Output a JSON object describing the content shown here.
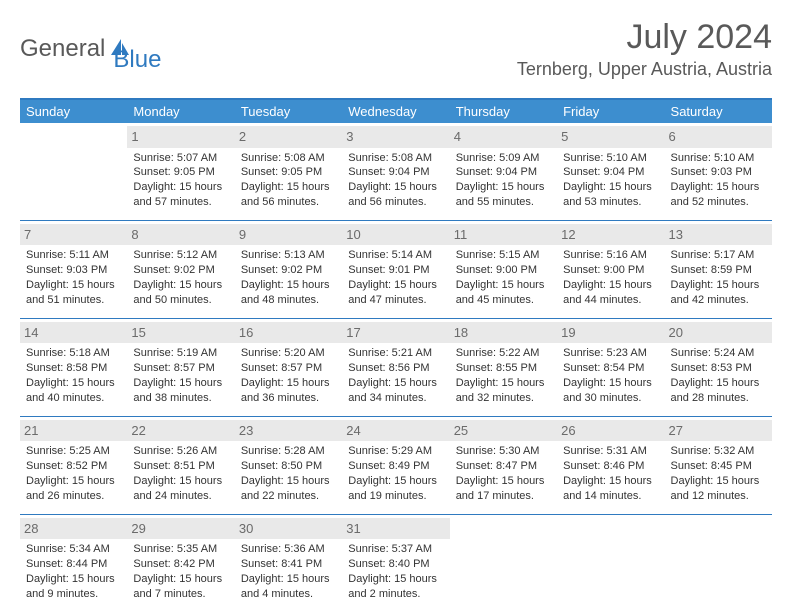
{
  "brand": {
    "part1": "General",
    "part2": "Blue"
  },
  "title": "July 2024",
  "location": "Ternberg, Upper Austria, Austria",
  "colors": {
    "accent": "#3d8ecf",
    "rule": "#2f7ac0",
    "daynum_bg": "#e9e9e9",
    "text": "#333333",
    "muted": "#595959"
  },
  "weekdays": [
    "Sunday",
    "Monday",
    "Tuesday",
    "Wednesday",
    "Thursday",
    "Friday",
    "Saturday"
  ],
  "weeks": [
    [
      null,
      {
        "n": "1",
        "sr": "Sunrise: 5:07 AM",
        "ss": "Sunset: 9:05 PM",
        "d1": "Daylight: 15 hours",
        "d2": "and 57 minutes."
      },
      {
        "n": "2",
        "sr": "Sunrise: 5:08 AM",
        "ss": "Sunset: 9:05 PM",
        "d1": "Daylight: 15 hours",
        "d2": "and 56 minutes."
      },
      {
        "n": "3",
        "sr": "Sunrise: 5:08 AM",
        "ss": "Sunset: 9:04 PM",
        "d1": "Daylight: 15 hours",
        "d2": "and 56 minutes."
      },
      {
        "n": "4",
        "sr": "Sunrise: 5:09 AM",
        "ss": "Sunset: 9:04 PM",
        "d1": "Daylight: 15 hours",
        "d2": "and 55 minutes."
      },
      {
        "n": "5",
        "sr": "Sunrise: 5:10 AM",
        "ss": "Sunset: 9:04 PM",
        "d1": "Daylight: 15 hours",
        "d2": "and 53 minutes."
      },
      {
        "n": "6",
        "sr": "Sunrise: 5:10 AM",
        "ss": "Sunset: 9:03 PM",
        "d1": "Daylight: 15 hours",
        "d2": "and 52 minutes."
      }
    ],
    [
      {
        "n": "7",
        "sr": "Sunrise: 5:11 AM",
        "ss": "Sunset: 9:03 PM",
        "d1": "Daylight: 15 hours",
        "d2": "and 51 minutes."
      },
      {
        "n": "8",
        "sr": "Sunrise: 5:12 AM",
        "ss": "Sunset: 9:02 PM",
        "d1": "Daylight: 15 hours",
        "d2": "and 50 minutes."
      },
      {
        "n": "9",
        "sr": "Sunrise: 5:13 AM",
        "ss": "Sunset: 9:02 PM",
        "d1": "Daylight: 15 hours",
        "d2": "and 48 minutes."
      },
      {
        "n": "10",
        "sr": "Sunrise: 5:14 AM",
        "ss": "Sunset: 9:01 PM",
        "d1": "Daylight: 15 hours",
        "d2": "and 47 minutes."
      },
      {
        "n": "11",
        "sr": "Sunrise: 5:15 AM",
        "ss": "Sunset: 9:00 PM",
        "d1": "Daylight: 15 hours",
        "d2": "and 45 minutes."
      },
      {
        "n": "12",
        "sr": "Sunrise: 5:16 AM",
        "ss": "Sunset: 9:00 PM",
        "d1": "Daylight: 15 hours",
        "d2": "and 44 minutes."
      },
      {
        "n": "13",
        "sr": "Sunrise: 5:17 AM",
        "ss": "Sunset: 8:59 PM",
        "d1": "Daylight: 15 hours",
        "d2": "and 42 minutes."
      }
    ],
    [
      {
        "n": "14",
        "sr": "Sunrise: 5:18 AM",
        "ss": "Sunset: 8:58 PM",
        "d1": "Daylight: 15 hours",
        "d2": "and 40 minutes."
      },
      {
        "n": "15",
        "sr": "Sunrise: 5:19 AM",
        "ss": "Sunset: 8:57 PM",
        "d1": "Daylight: 15 hours",
        "d2": "and 38 minutes."
      },
      {
        "n": "16",
        "sr": "Sunrise: 5:20 AM",
        "ss": "Sunset: 8:57 PM",
        "d1": "Daylight: 15 hours",
        "d2": "and 36 minutes."
      },
      {
        "n": "17",
        "sr": "Sunrise: 5:21 AM",
        "ss": "Sunset: 8:56 PM",
        "d1": "Daylight: 15 hours",
        "d2": "and 34 minutes."
      },
      {
        "n": "18",
        "sr": "Sunrise: 5:22 AM",
        "ss": "Sunset: 8:55 PM",
        "d1": "Daylight: 15 hours",
        "d2": "and 32 minutes."
      },
      {
        "n": "19",
        "sr": "Sunrise: 5:23 AM",
        "ss": "Sunset: 8:54 PM",
        "d1": "Daylight: 15 hours",
        "d2": "and 30 minutes."
      },
      {
        "n": "20",
        "sr": "Sunrise: 5:24 AM",
        "ss": "Sunset: 8:53 PM",
        "d1": "Daylight: 15 hours",
        "d2": "and 28 minutes."
      }
    ],
    [
      {
        "n": "21",
        "sr": "Sunrise: 5:25 AM",
        "ss": "Sunset: 8:52 PM",
        "d1": "Daylight: 15 hours",
        "d2": "and 26 minutes."
      },
      {
        "n": "22",
        "sr": "Sunrise: 5:26 AM",
        "ss": "Sunset: 8:51 PM",
        "d1": "Daylight: 15 hours",
        "d2": "and 24 minutes."
      },
      {
        "n": "23",
        "sr": "Sunrise: 5:28 AM",
        "ss": "Sunset: 8:50 PM",
        "d1": "Daylight: 15 hours",
        "d2": "and 22 minutes."
      },
      {
        "n": "24",
        "sr": "Sunrise: 5:29 AM",
        "ss": "Sunset: 8:49 PM",
        "d1": "Daylight: 15 hours",
        "d2": "and 19 minutes."
      },
      {
        "n": "25",
        "sr": "Sunrise: 5:30 AM",
        "ss": "Sunset: 8:47 PM",
        "d1": "Daylight: 15 hours",
        "d2": "and 17 minutes."
      },
      {
        "n": "26",
        "sr": "Sunrise: 5:31 AM",
        "ss": "Sunset: 8:46 PM",
        "d1": "Daylight: 15 hours",
        "d2": "and 14 minutes."
      },
      {
        "n": "27",
        "sr": "Sunrise: 5:32 AM",
        "ss": "Sunset: 8:45 PM",
        "d1": "Daylight: 15 hours",
        "d2": "and 12 minutes."
      }
    ],
    [
      {
        "n": "28",
        "sr": "Sunrise: 5:34 AM",
        "ss": "Sunset: 8:44 PM",
        "d1": "Daylight: 15 hours",
        "d2": "and 9 minutes."
      },
      {
        "n": "29",
        "sr": "Sunrise: 5:35 AM",
        "ss": "Sunset: 8:42 PM",
        "d1": "Daylight: 15 hours",
        "d2": "and 7 minutes."
      },
      {
        "n": "30",
        "sr": "Sunrise: 5:36 AM",
        "ss": "Sunset: 8:41 PM",
        "d1": "Daylight: 15 hours",
        "d2": "and 4 minutes."
      },
      {
        "n": "31",
        "sr": "Sunrise: 5:37 AM",
        "ss": "Sunset: 8:40 PM",
        "d1": "Daylight: 15 hours",
        "d2": "and 2 minutes."
      },
      null,
      null,
      null
    ]
  ]
}
